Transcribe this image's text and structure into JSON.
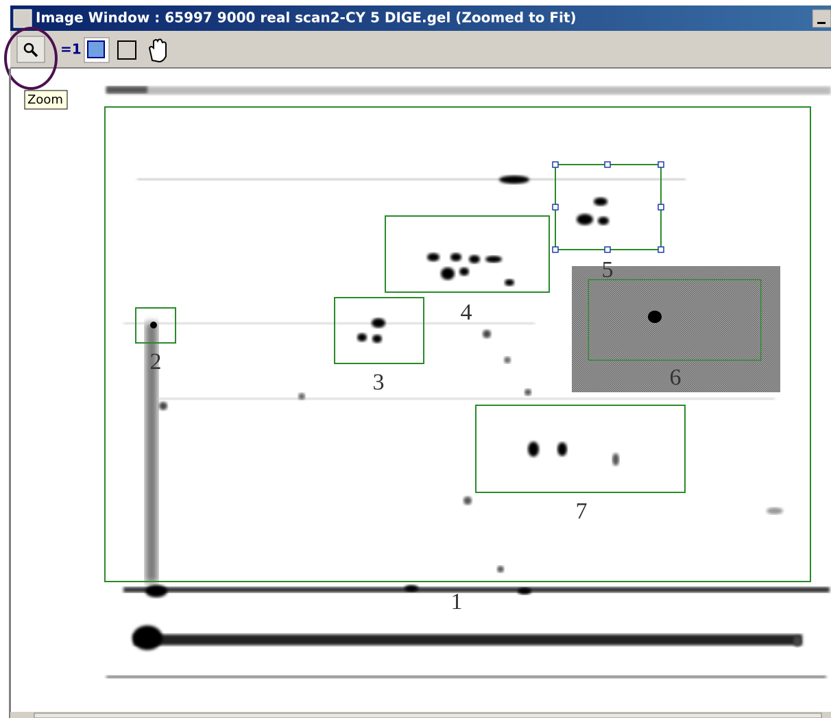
{
  "window": {
    "title": "Image Window : 65997 9000 real scan2-CY 5 DIGE.gel (Zoomed to Fit)"
  },
  "toolbar": {
    "scale_label": "=1"
  },
  "tooltip": "Zoom",
  "gel": {
    "region_labels": [
      "1",
      "2",
      "3",
      "4",
      "5",
      "6",
      "7"
    ]
  }
}
